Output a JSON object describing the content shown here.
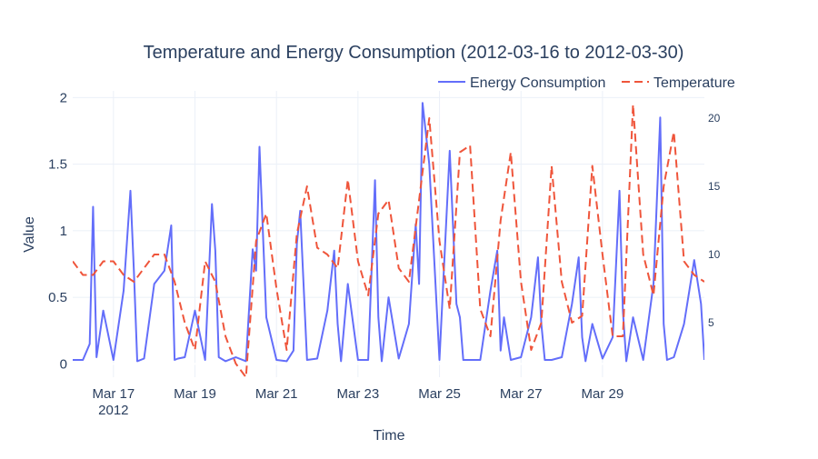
{
  "chart_data": {
    "type": "line",
    "title": "Temperature and Energy Consumption (2012-03-16 to 2012-03-30)",
    "xlabel": "Time",
    "ylabel": "Value",
    "y2label": "",
    "x_tick_labels": [
      "Mar 17",
      "Mar 19",
      "Mar 21",
      "Mar 23",
      "Mar 25",
      "Mar 27",
      "Mar 29"
    ],
    "x_tick_dates": [
      "2012-03-17",
      "2012-03-19",
      "2012-03-21",
      "2012-03-23",
      "2012-03-25",
      "2012-03-27",
      "2012-03-29"
    ],
    "x_year_label": "2012",
    "xlim": [
      "2012-03-16",
      "2012-03-31 12:00"
    ],
    "ylim": [
      -0.1,
      2.05
    ],
    "y_ticks": [
      0,
      0.5,
      1,
      1.5,
      2
    ],
    "y_tick_labels": [
      "0",
      "0.5",
      "1",
      "1.5",
      "2"
    ],
    "y2lim": [
      1,
      22
    ],
    "y2_ticks": [
      5,
      10,
      15,
      20
    ],
    "y2_tick_labels": [
      "5",
      "10",
      "15",
      "20"
    ],
    "grid": true,
    "legend_position": "top-right",
    "series": [
      {
        "name": "Energy Consumption",
        "axis": "left",
        "color": "#636efa",
        "dash": "solid",
        "x": [
          "2012-03-16 00:00",
          "2012-03-16 06:00",
          "2012-03-16 10:00",
          "2012-03-16 12:00",
          "2012-03-16 14:00",
          "2012-03-16 18:00",
          "2012-03-17 00:00",
          "2012-03-17 06:00",
          "2012-03-17 10:00",
          "2012-03-17 12:00",
          "2012-03-17 14:00",
          "2012-03-17 18:00",
          "2012-03-18 00:00",
          "2012-03-18 06:00",
          "2012-03-18 10:00",
          "2012-03-18 12:00",
          "2012-03-18 14:00",
          "2012-03-18 18:00",
          "2012-03-19 00:00",
          "2012-03-19 06:00",
          "2012-03-19 10:00",
          "2012-03-19 12:00",
          "2012-03-19 14:00",
          "2012-03-19 18:00",
          "2012-03-20 00:00",
          "2012-03-20 06:00",
          "2012-03-20 10:00",
          "2012-03-20 12:00",
          "2012-03-20 14:00",
          "2012-03-20 18:00",
          "2012-03-21 00:00",
          "2012-03-21 06:00",
          "2012-03-21 10:00",
          "2012-03-21 12:00",
          "2012-03-21 14:00",
          "2012-03-21 18:00",
          "2012-03-22 00:00",
          "2012-03-22 06:00",
          "2012-03-22 10:00",
          "2012-03-22 12:00",
          "2012-03-22 14:00",
          "2012-03-22 18:00",
          "2012-03-23 00:00",
          "2012-03-23 06:00",
          "2012-03-23 10:00",
          "2012-03-23 12:00",
          "2012-03-23 14:00",
          "2012-03-23 18:00",
          "2012-03-24 00:00",
          "2012-03-24 06:00",
          "2012-03-24 10:00",
          "2012-03-24 12:00",
          "2012-03-24 14:00",
          "2012-03-24 18:00",
          "2012-03-25 00:00",
          "2012-03-25 06:00",
          "2012-03-25 10:00",
          "2012-03-25 12:00",
          "2012-03-25 14:00",
          "2012-03-25 18:00",
          "2012-03-26 00:00",
          "2012-03-26 06:00",
          "2012-03-26 10:00",
          "2012-03-26 12:00",
          "2012-03-26 14:00",
          "2012-03-26 18:00",
          "2012-03-27 00:00",
          "2012-03-27 06:00",
          "2012-03-27 10:00",
          "2012-03-27 12:00",
          "2012-03-27 14:00",
          "2012-03-27 18:00",
          "2012-03-28 00:00",
          "2012-03-28 06:00",
          "2012-03-28 10:00",
          "2012-03-28 12:00",
          "2012-03-28 14:00",
          "2012-03-28 18:00",
          "2012-03-29 00:00",
          "2012-03-29 06:00",
          "2012-03-29 10:00",
          "2012-03-29 12:00",
          "2012-03-29 14:00",
          "2012-03-29 18:00",
          "2012-03-30 00:00",
          "2012-03-30 06:00",
          "2012-03-30 10:00",
          "2012-03-30 12:00",
          "2012-03-30 14:00",
          "2012-03-30 18:00",
          "2012-03-31 00:00",
          "2012-03-31 06:00",
          "2012-03-31 10:00",
          "2012-03-31 12:00"
        ],
        "y": [
          0.03,
          0.03,
          0.15,
          1.18,
          0.05,
          0.4,
          0.03,
          0.55,
          1.3,
          0.7,
          0.02,
          0.04,
          0.6,
          0.7,
          1.04,
          0.03,
          0.04,
          0.05,
          0.4,
          0.03,
          1.2,
          0.85,
          0.05,
          0.02,
          0.05,
          0.02,
          0.86,
          0.7,
          1.63,
          0.35,
          0.03,
          0.02,
          0.1,
          0.9,
          1.15,
          0.03,
          0.04,
          0.4,
          0.85,
          0.3,
          0.02,
          0.6,
          0.03,
          0.03,
          1.38,
          0.35,
          0.02,
          0.5,
          0.04,
          0.3,
          1.05,
          0.6,
          1.96,
          1.5,
          0.03,
          1.6,
          0.45,
          0.35,
          0.03,
          0.03,
          0.03,
          0.55,
          0.85,
          0.1,
          0.35,
          0.03,
          0.05,
          0.35,
          0.8,
          0.3,
          0.03,
          0.03,
          0.05,
          0.45,
          0.8,
          0.2,
          0.02,
          0.3,
          0.04,
          0.2,
          1.3,
          0.4,
          0.02,
          0.35,
          0.03,
          0.6,
          1.85,
          0.3,
          0.03,
          0.05,
          0.3,
          0.78,
          0.45,
          0.03
        ]
      },
      {
        "name": "Temperature",
        "axis": "right",
        "color": "#ef553b",
        "dash": "dashed",
        "x": [
          "2012-03-16 00:00",
          "2012-03-16 06:00",
          "2012-03-16 12:00",
          "2012-03-16 18:00",
          "2012-03-17 00:00",
          "2012-03-17 06:00",
          "2012-03-17 12:00",
          "2012-03-17 18:00",
          "2012-03-18 00:00",
          "2012-03-18 06:00",
          "2012-03-18 12:00",
          "2012-03-18 18:00",
          "2012-03-19 00:00",
          "2012-03-19 06:00",
          "2012-03-19 12:00",
          "2012-03-19 18:00",
          "2012-03-20 00:00",
          "2012-03-20 06:00",
          "2012-03-20 12:00",
          "2012-03-20 18:00",
          "2012-03-21 00:00",
          "2012-03-21 06:00",
          "2012-03-21 12:00",
          "2012-03-21 18:00",
          "2012-03-22 00:00",
          "2012-03-22 06:00",
          "2012-03-22 12:00",
          "2012-03-22 18:00",
          "2012-03-23 00:00",
          "2012-03-23 06:00",
          "2012-03-23 12:00",
          "2012-03-23 18:00",
          "2012-03-24 00:00",
          "2012-03-24 06:00",
          "2012-03-24 12:00",
          "2012-03-24 18:00",
          "2012-03-25 00:00",
          "2012-03-25 06:00",
          "2012-03-25 12:00",
          "2012-03-25 18:00",
          "2012-03-26 00:00",
          "2012-03-26 06:00",
          "2012-03-26 12:00",
          "2012-03-26 18:00",
          "2012-03-27 00:00",
          "2012-03-27 06:00",
          "2012-03-27 12:00",
          "2012-03-27 18:00",
          "2012-03-28 00:00",
          "2012-03-28 06:00",
          "2012-03-28 12:00",
          "2012-03-28 18:00",
          "2012-03-29 00:00",
          "2012-03-29 06:00",
          "2012-03-29 12:00",
          "2012-03-29 18:00",
          "2012-03-30 00:00",
          "2012-03-30 06:00",
          "2012-03-30 12:00",
          "2012-03-30 18:00",
          "2012-03-31 00:00",
          "2012-03-31 06:00",
          "2012-03-31 12:00"
        ],
        "y": [
          9.5,
          8.5,
          8.5,
          9.5,
          9.5,
          8.5,
          8,
          9,
          10,
          10,
          8,
          5,
          3,
          9.5,
          8,
          4,
          2,
          1,
          11,
          13,
          7.5,
          3,
          11.5,
          15,
          10.5,
          10,
          9,
          15.5,
          9.5,
          7,
          13,
          14,
          9,
          8,
          14,
          20,
          11,
          6,
          17.5,
          18,
          6,
          4,
          12.5,
          17.5,
          8,
          3,
          5,
          16.5,
          8,
          5,
          5.5,
          16.5,
          10,
          4,
          4,
          21,
          10,
          7,
          15,
          19,
          9.5,
          8.5,
          8
        ]
      }
    ]
  }
}
